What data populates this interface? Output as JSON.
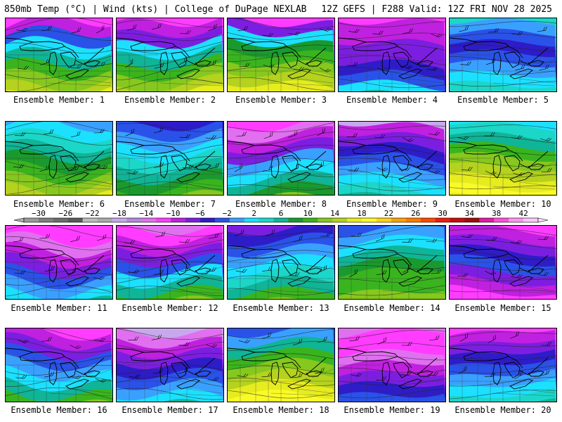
{
  "header": {
    "left": "850mb Temp (°C) | Wind (kts) | College of DuPage NEXLAB",
    "right": "12Z GEFS | F288 Valid: 12Z FRI NOV 28 2025"
  },
  "colorbar": {
    "labels": [
      "-30",
      "-26",
      "-22",
      "-18",
      "-14",
      "-10",
      "-6",
      "-2",
      "2",
      "6",
      "10",
      "14",
      "18",
      "22",
      "26",
      "30",
      "34",
      "38",
      "42"
    ],
    "colors": [
      "#9a9a9a",
      "#7e7e7e",
      "#6c6c6c",
      "#5a5a5a",
      "#bbbbbb",
      "#a9a9a9",
      "#c8a8ec",
      "#b08adc",
      "#e070f0",
      "#ff3cff",
      "#c020e0",
      "#7c1ee0",
      "#2e1cc8",
      "#2a52e8",
      "#3aa0ff",
      "#1ce0ff",
      "#1cd6c8",
      "#10b496",
      "#1a9a2e",
      "#3ab41e",
      "#86c81e",
      "#b4d21e",
      "#e6ec1e",
      "#fafa28",
      "#ffd214",
      "#ffa008",
      "#ff7a00",
      "#ff4800",
      "#ee1c0c",
      "#c80c0c",
      "#a00c0c",
      "#e01ca4",
      "#ff50d8",
      "#ff96ec",
      "#ffc8fa"
    ]
  },
  "members": [
    {
      "label": "Ensemble Member: 1",
      "bands": [
        "#ff3cff",
        "#c020e0",
        "#2a52e8",
        "#1ce0ff",
        "#10b496",
        "#3ab41e",
        "#86c81e",
        "#b4d21e",
        "#e6ec1e"
      ]
    },
    {
      "label": "Ensemble Member: 2",
      "bands": [
        "#ff3cff",
        "#c020e0",
        "#7c1ee0",
        "#1ce0ff",
        "#10b496",
        "#3ab41e",
        "#86c81e",
        "#b4d21e",
        "#e6ec1e"
      ]
    },
    {
      "label": "Ensemble Member: 3",
      "bands": [
        "#ff3cff",
        "#7c1ee0",
        "#1ce0ff",
        "#1a9a2e",
        "#3ab41e",
        "#86c81e",
        "#b4d21e",
        "#e6ec1e",
        "#fafa28"
      ]
    },
    {
      "label": "Ensemble Member: 4",
      "bands": [
        "#ff3cff",
        "#c020e0",
        "#c020e0",
        "#7c1ee0",
        "#7c1ee0",
        "#2e1cc8",
        "#2a52e8",
        "#1ce0ff",
        "#10b496"
      ]
    },
    {
      "label": "Ensemble Member: 5",
      "bands": [
        "#1cd6c8",
        "#3aa0ff",
        "#2a52e8",
        "#2e1cc8",
        "#2a52e8",
        "#3aa0ff",
        "#1ce0ff",
        "#1cd6c8",
        "#10b496"
      ]
    },
    {
      "label": "Ensemble Member: 6",
      "bands": [
        "#3aa0ff",
        "#1ce0ff",
        "#1cd6c8",
        "#10b496",
        "#1a9a2e",
        "#3ab41e",
        "#86c81e",
        "#b4d21e",
        "#e6ec1e"
      ]
    },
    {
      "label": "Ensemble Member: 7",
      "bands": [
        "#2e1cc8",
        "#2a52e8",
        "#3aa0ff",
        "#1ce0ff",
        "#1cd6c8",
        "#10b496",
        "#1a9a2e",
        "#3ab41e",
        "#86c81e"
      ]
    },
    {
      "label": "Ensemble Member: 8",
      "bands": [
        "#ff3cff",
        "#e070f0",
        "#c020e0",
        "#7c1ee0",
        "#3aa0ff",
        "#1ce0ff",
        "#10b496",
        "#1a9a2e",
        "#86c81e"
      ]
    },
    {
      "label": "Ensemble Member: 9",
      "bands": [
        "#c8a8ec",
        "#c020e0",
        "#7c1ee0",
        "#2e1cc8",
        "#2a52e8",
        "#3aa0ff",
        "#1ce0ff",
        "#1cd6c8",
        "#10b496"
      ]
    },
    {
      "label": "Ensemble Member: 10",
      "bands": [
        "#1ce0ff",
        "#1cd6c8",
        "#10b496",
        "#3ab41e",
        "#86c81e",
        "#b4d21e",
        "#e6ec1e",
        "#fafa28",
        "#e6ec1e"
      ]
    },
    {
      "label": "Ensemble Member: 11",
      "bands": [
        "#ff3cff",
        "#ff3cff",
        "#e070f0",
        "#c020e0",
        "#7c1ee0",
        "#2a52e8",
        "#3aa0ff",
        "#1ce0ff",
        "#10b496"
      ]
    },
    {
      "label": "Ensemble Member: 12",
      "bands": [
        "#e070f0",
        "#ff3cff",
        "#c020e0",
        "#7c1ee0",
        "#2a52e8",
        "#1ce0ff",
        "#10b496",
        "#3ab41e",
        "#86c81e"
      ]
    },
    {
      "label": "Ensemble Member: 13",
      "bands": [
        "#7c1ee0",
        "#2e1cc8",
        "#2a52e8",
        "#3aa0ff",
        "#1ce0ff",
        "#1cd6c8",
        "#10b496",
        "#3ab41e",
        "#86c81e"
      ]
    },
    {
      "label": "Ensemble Member: 14",
      "bands": [
        "#2a52e8",
        "#3aa0ff",
        "#1ce0ff",
        "#10b496",
        "#1a9a2e",
        "#3ab41e",
        "#3ab41e",
        "#86c81e",
        "#b4d21e"
      ]
    },
    {
      "label": "Ensemble Member: 15",
      "bands": [
        "#ff3cff",
        "#c020e0",
        "#7c1ee0",
        "#2e1cc8",
        "#2a52e8",
        "#7c1ee0",
        "#c020e0",
        "#ff3cff",
        "#ff3cff"
      ]
    },
    {
      "label": "Ensemble Member: 16",
      "bands": [
        "#ff3cff",
        "#c020e0",
        "#7c1ee0",
        "#2a52e8",
        "#3aa0ff",
        "#1ce0ff",
        "#10b496",
        "#3ab41e",
        "#86c81e"
      ]
    },
    {
      "label": "Ensemble Member: 17",
      "bands": [
        "#c8a8ec",
        "#e070f0",
        "#c020e0",
        "#7c1ee0",
        "#2e1cc8",
        "#2a52e8",
        "#3aa0ff",
        "#1ce0ff",
        "#10b496"
      ]
    },
    {
      "label": "Ensemble Member: 18",
      "bands": [
        "#2a52e8",
        "#3aa0ff",
        "#10b496",
        "#3ab41e",
        "#86c81e",
        "#b4d21e",
        "#e6ec1e",
        "#fafa28",
        "#e6ec1e"
      ]
    },
    {
      "label": "Ensemble Member: 19",
      "bands": [
        "#e070f0",
        "#ff3cff",
        "#ff3cff",
        "#e070f0",
        "#c020e0",
        "#7c1ee0",
        "#2e1cc8",
        "#2a52e8",
        "#3aa0ff"
      ]
    },
    {
      "label": "Ensemble Member: 20",
      "bands": [
        "#ff3cff",
        "#c020e0",
        "#7c1ee0",
        "#2e1cc8",
        "#2a52e8",
        "#3aa0ff",
        "#1ce0ff",
        "#1cd6c8",
        "#10b496"
      ]
    }
  ]
}
